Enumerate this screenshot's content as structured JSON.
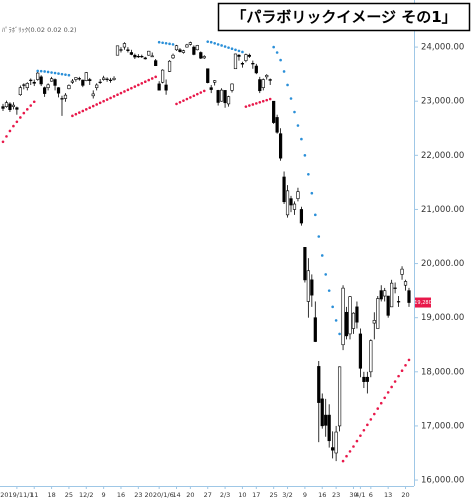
{
  "chart_data": {
    "type": "candlestick",
    "title": "「パラボリックイメージ その1」",
    "indicator_label": "ﾊﾟﾗﾎﾞﾘｯｸ(0.02 0.02 0.2)",
    "categories": [
      null,
      null,
      null,
      null,
      "2019/11/1",
      null,
      null,
      null,
      null,
      "11",
      null,
      null,
      null,
      null,
      "18",
      null,
      null,
      null,
      null,
      "25",
      null,
      null,
      null,
      null,
      "12/2",
      null,
      null,
      null,
      null,
      "9",
      null,
      null,
      null,
      null,
      "16",
      null,
      null,
      null,
      null,
      "23",
      null,
      null,
      null,
      null,
      null,
      "2020/1/6",
      null,
      null,
      null,
      null,
      "14",
      null,
      null,
      null,
      "20",
      null,
      null,
      null,
      null,
      "27",
      null,
      null,
      null,
      null,
      "2/3",
      null,
      null,
      null,
      null,
      "10",
      null,
      null,
      null,
      "17",
      null,
      null,
      null,
      null,
      "25",
      null,
      null,
      null,
      "3/2",
      null,
      null,
      null,
      null,
      "9",
      null,
      null,
      null,
      null,
      "16",
      null,
      null,
      null,
      "23",
      null,
      null,
      null,
      null,
      "30",
      null,
      "4/1",
      null,
      null,
      "6",
      null,
      null,
      null,
      null,
      "13",
      null,
      null,
      null,
      null,
      "20",
      null
    ],
    "open": [
      22900,
      22900,
      22950,
      22900,
      22880,
      23120,
      23300,
      23250,
      23380,
      23350,
      23400,
      23450,
      23250,
      23250,
      23370,
      23400,
      23250,
      23050,
      23050,
      23230,
      23350,
      23400,
      23420,
      23390,
      23380,
      23400,
      23100,
      23250,
      23350,
      23400,
      23400,
      23380,
      23400,
      23850,
      23950,
      24000,
      23950,
      23900,
      23850,
      23830,
      23830,
      23800,
      23850,
      23820,
      23750,
      23320,
      23350,
      23300,
      23550,
      23800,
      23950,
      23950,
      23900,
      24000,
      24050,
      24000,
      23950,
      23900,
      23800,
      23600,
      23250,
      23350,
      23200,
      23000,
      23200,
      22950,
      23200,
      23600,
      23850,
      23700,
      23750,
      23850,
      23700,
      23650,
      23400,
      23250,
      23450,
      23400,
      23000,
      22700,
      22400,
      21600,
      20900,
      21200,
      21000,
      21200,
      21000,
      20300,
      19300,
      19700,
      19000,
      18100,
      17500,
      17200,
      17200,
      16600,
      16500,
      17000,
      18500,
      19100,
      18700,
      18800,
      19200,
      18700,
      17900,
      17900,
      18000,
      18900,
      18800,
      19500,
      19400,
      19400,
      19200,
      19550,
      19300,
      19800,
      19600,
      19500
    ],
    "high": [
      22950,
      23010,
      22980,
      22980,
      22900,
      23290,
      23330,
      23350,
      23420,
      23400,
      23540,
      23480,
      23270,
      23330,
      23450,
      23420,
      23260,
      23100,
      23150,
      23310,
      23410,
      23440,
      23450,
      23400,
      23540,
      23430,
      23200,
      23330,
      23410,
      23470,
      23440,
      23430,
      23460,
      24030,
      24000,
      24090,
      24000,
      23950,
      23880,
      23870,
      23860,
      23820,
      23930,
      23900,
      23780,
      23370,
      23590,
      23400,
      23760,
      23880,
      24040,
      23980,
      23950,
      24060,
      24100,
      24030,
      24040,
      23920,
      23850,
      23600,
      23300,
      23390,
      23210,
      23240,
      23200,
      23100,
      23330,
      23880,
      23870,
      23730,
      23880,
      23880,
      23750,
      23690,
      23450,
      23420,
      23500,
      23420,
      23000,
      22750,
      22500,
      21700,
      21450,
      21250,
      21150,
      21400,
      21050,
      20300,
      20100,
      19800,
      19300,
      18200,
      17600,
      17500,
      17400,
      16900,
      17000,
      18100,
      19600,
      19200,
      19400,
      19100,
      19300,
      18800,
      18000,
      18000,
      18600,
      19100,
      19400,
      19600,
      19550,
      19400,
      19700,
      19650,
      19400,
      19950,
      19700,
      19550
    ],
    "low": [
      22820,
      22880,
      22800,
      22850,
      22750,
      23100,
      23220,
      23200,
      23300,
      23280,
      23380,
      23280,
      23080,
      23200,
      23360,
      23200,
      23070,
      22730,
      22990,
      23220,
      23320,
      23360,
      23380,
      23260,
      23370,
      23300,
      23050,
      23200,
      23320,
      23380,
      23360,
      23340,
      23380,
      23850,
      23900,
      23950,
      23900,
      23850,
      23780,
      23800,
      23800,
      23770,
      23840,
      23820,
      23650,
      23200,
      23330,
      23120,
      23540,
      23780,
      23930,
      23900,
      23880,
      23990,
      24030,
      23850,
      23940,
      23780,
      23780,
      23330,
      23150,
      23290,
      22920,
      22990,
      22880,
      22900,
      23160,
      23600,
      23750,
      23620,
      23720,
      23800,
      23600,
      23500,
      23150,
      23200,
      23400,
      23300,
      22580,
      22400,
      21900,
      21100,
      20850,
      20950,
      20900,
      21150,
      20700,
      19650,
      19000,
      19200,
      18550,
      16700,
      16950,
      16800,
      16600,
      16400,
      16350,
      16900,
      18400,
      18600,
      18600,
      18700,
      18800,
      17900,
      17700,
      17600,
      17900,
      18600,
      18800,
      19300,
      19300,
      19000,
      19200,
      19450,
      19200,
      19700,
      19500,
      19200
    ],
    "close": [
      22867,
      22974,
      22843,
      22927,
      22850,
      23251,
      23303,
      23330,
      23391,
      23331,
      23520,
      23319,
      23141,
      23303,
      23416,
      23292,
      23148,
      23038,
      23112,
      23292,
      23373,
      23437,
      23409,
      23293,
      23529,
      23379,
      23135,
      23300,
      23354,
      23430,
      23410,
      23391,
      23424,
      24023,
      23952,
      24066,
      23934,
      23864,
      23816,
      23821,
      23830,
      23782,
      23924,
      23837,
      23656,
      23204,
      23575,
      23204,
      23739,
      23850,
      24025,
      23916,
      23933,
      24041,
      24083,
      23864,
      24031,
      23795,
      23827,
      23343,
      23215,
      23379,
      22977,
      23205,
      22971,
      23084,
      23319,
      23873,
      23827,
      23685,
      23861,
      23827,
      23687,
      23523,
      23193,
      23400,
      23479,
      23386,
      22605,
      22426,
      21948,
      21142,
      21344,
      21082,
      21100,
      21329,
      20749,
      19698,
      19867,
      19416,
      18559,
      17431,
      17002,
      17011,
      16726,
      16552,
      16887,
      18092,
      19546,
      18664,
      19389,
      19084,
      18917,
      18065,
      17818,
      17820,
      18576,
      18950,
      19353,
      19345,
      19498,
      19043,
      19638,
      19550,
      19290,
      19897,
      19669,
      19280
    ],
    "up_color": "#ffffff",
    "down_color": "#000000",
    "sar": {
      "values": [
        22250,
        22350,
        22450,
        22540,
        22620,
        22700,
        22780,
        22850,
        22920,
        22990,
        23560,
        23555,
        23550,
        23540,
        23530,
        23520,
        23510,
        23500,
        23490,
        23480,
        22730,
        22760,
        22790,
        22820,
        22850,
        22880,
        22910,
        22940,
        22970,
        23000,
        23030,
        23060,
        23090,
        23120,
        23150,
        23180,
        23210,
        23240,
        23270,
        23300,
        23330,
        23360,
        23390,
        23420,
        23450,
        24090,
        24080,
        24070,
        24060,
        24050,
        22950,
        22980,
        23010,
        23040,
        23070,
        23100,
        23130,
        23160,
        23190,
        24100,
        24090,
        24070,
        24050,
        24030,
        24010,
        23990,
        23970,
        23950,
        23930,
        23910,
        22900,
        22920,
        22940,
        22960,
        22980,
        23000,
        23020,
        23040,
        24000,
        23900,
        23760,
        23550,
        23300,
        23050,
        22800,
        22550,
        22300,
        22000,
        21650,
        21300,
        20900,
        20500,
        20150,
        19800,
        19500,
        19200,
        18950,
        18700,
        16350,
        16440,
        16530,
        16620,
        16720,
        16820,
        16920,
        17020,
        17120,
        17220,
        17320,
        17420,
        17520,
        17620,
        17720,
        17820,
        17920,
        18020,
        18120,
        18220
      ],
      "below_color": "#e8184a",
      "above_color": "#2a8fd8"
    },
    "last_price_label": "19,280",
    "last_price_color": "#e8184a",
    "ylim": [
      15890,
      24870
    ],
    "yticks": [
      {
        "value": 16000,
        "label": "16,000.00"
      },
      {
        "value": 17000,
        "label": "17,000.00"
      },
      {
        "value": 18000,
        "label": "18,000.00"
      },
      {
        "value": 19000,
        "label": "19,000.00"
      },
      {
        "value": 20000,
        "label": "20,000.00"
      },
      {
        "value": 21000,
        "label": "21,000.00"
      },
      {
        "value": 22000,
        "label": "22,000.00"
      },
      {
        "value": 23000,
        "label": "23,000.00"
      },
      {
        "value": 24000,
        "label": "24,000.00"
      }
    ]
  }
}
